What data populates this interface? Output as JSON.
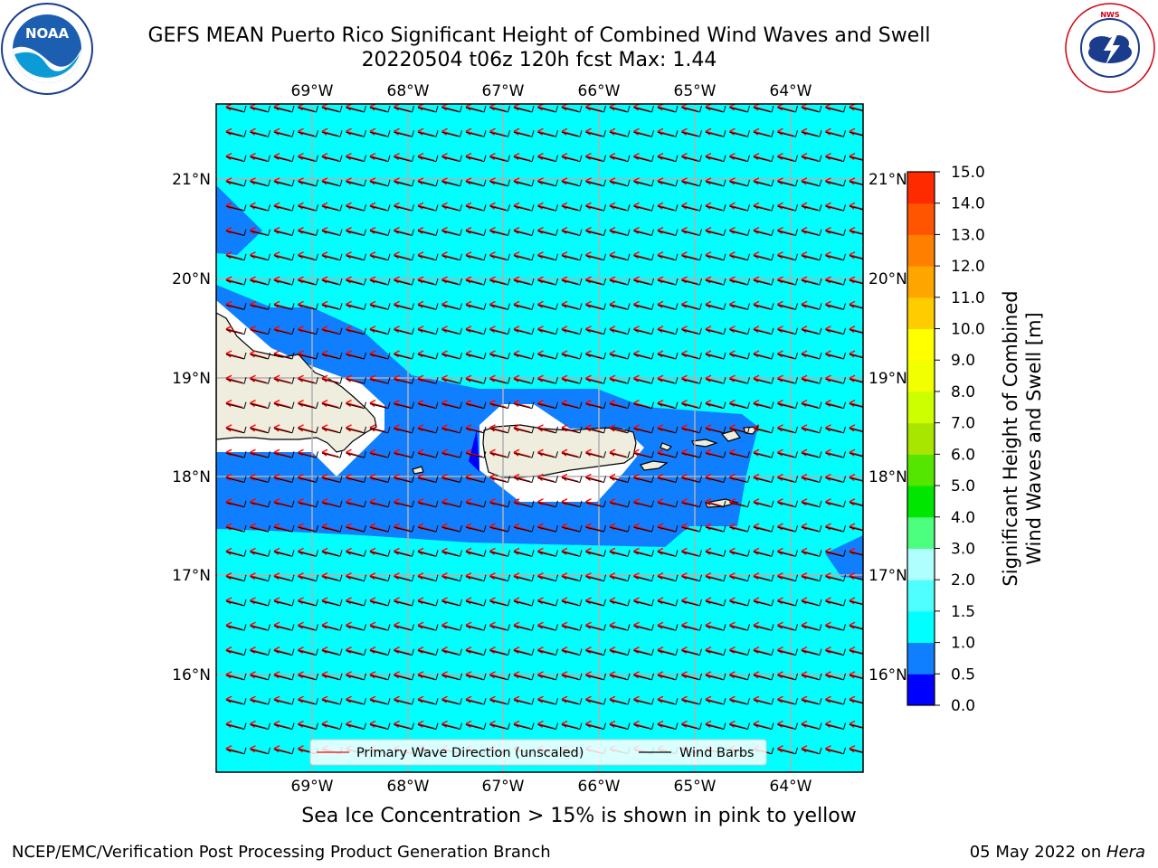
{
  "title": {
    "line1": "GEFS MEAN Puerto Rico Significant Height of Combined Wind Waves and Swell",
    "line2": "20220504 t06z 120h fcst   Max: 1.44"
  },
  "logos": {
    "left": {
      "icon": "noaa-logo-icon",
      "text": "NOAA"
    },
    "right": {
      "icon": "nws-logo-icon",
      "text": "NATIONAL WEATHER SERVICE"
    }
  },
  "map": {
    "lon_ticks_top": [
      "69°W",
      "68°W",
      "67°W",
      "66°W",
      "65°W",
      "64°W"
    ],
    "lon_ticks_bottom": [
      "69°W",
      "68°W",
      "67°W",
      "66°W",
      "65°W",
      "64°W"
    ],
    "lat_ticks_left": [
      "21°N",
      "20°N",
      "19°N",
      "18°N",
      "17°N",
      "16°N"
    ],
    "lat_ticks_right": [
      "21°N",
      "20°N",
      "19°N",
      "18°N",
      "17°N",
      "16°N"
    ],
    "land_color": "#efedde",
    "ocean_color": "#00ffff",
    "wave_direction_color": "#ff0000",
    "wind_barb_color": "#000000"
  },
  "legend": {
    "wave_direction": "Primary Wave Direction (unscaled)",
    "wind_barbs": "Wind Barbs"
  },
  "colorbar": {
    "title_line1": "Significant Height of Combined",
    "title_line2": "Wind Waves and Swell [m]",
    "ticks": [
      "0.0",
      "0.5",
      "1.0",
      "1.5",
      "2.0",
      "3.0",
      "4.0",
      "5.0",
      "6.0",
      "7.0",
      "8.0",
      "9.0",
      "10.0",
      "11.0",
      "12.0",
      "13.0",
      "14.0",
      "15.0"
    ],
    "colors": [
      "#0000ff",
      "#0f7fff",
      "#00ffff",
      "#4fffff",
      "#afffff",
      "#4cff7f",
      "#00e600",
      "#55e600",
      "#a8e600",
      "#ccff00",
      "#f2ff00",
      "#ffff00",
      "#ffcc00",
      "#ffa500",
      "#ff8000",
      "#ff5500",
      "#ff2a00",
      "#ff0000"
    ]
  },
  "subtitle": "Sea Ice Concentration > 15% is shown in pink to yellow",
  "footer": {
    "left": "NCEP/EMC/Verification Post Processing Product Generation Branch",
    "right_prefix": "05 May 2022 on ",
    "right_machine": "Hera"
  }
}
